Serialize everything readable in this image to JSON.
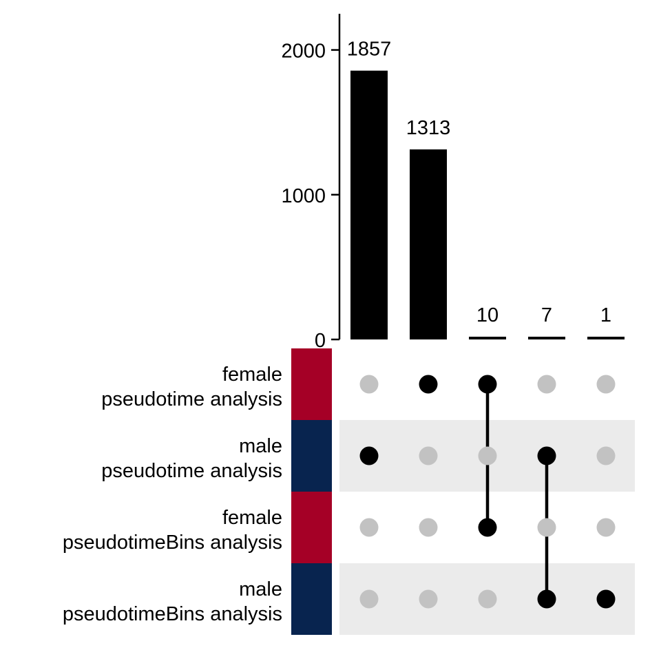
{
  "chart_data": {
    "type": "bar",
    "subtype": "upset",
    "title": "",
    "xlabel": "",
    "ylabel": "",
    "ylim": [
      0,
      2250
    ],
    "yticks": [
      0,
      1000,
      2000
    ],
    "grid": false,
    "legend": "none",
    "sets": [
      {
        "line1": "female",
        "line2": "pseudotime analysis",
        "color": "#A50026"
      },
      {
        "line1": "male",
        "line2": "pseudotime analysis",
        "color": "#08244F"
      },
      {
        "line1": "female",
        "line2": "pseudotimeBins analysis",
        "color": "#A50026"
      },
      {
        "line1": "male",
        "line2": "pseudotimeBins analysis",
        "color": "#08244F"
      }
    ],
    "intersections": [
      {
        "value": 1857,
        "label": "1857",
        "members": [
          1
        ]
      },
      {
        "value": 1313,
        "label": "1313",
        "members": [
          0
        ]
      },
      {
        "value": 10,
        "label": "10",
        "members": [
          0,
          2
        ]
      },
      {
        "value": 7,
        "label": "7",
        "members": [
          1,
          3
        ]
      },
      {
        "value": 1,
        "label": "1",
        "members": [
          3
        ]
      }
    ],
    "colors": {
      "bar": "#000000",
      "dot_active": "#000000",
      "dot_inactive": "#C2C2C2",
      "stripe": "#EBEBEB"
    }
  }
}
